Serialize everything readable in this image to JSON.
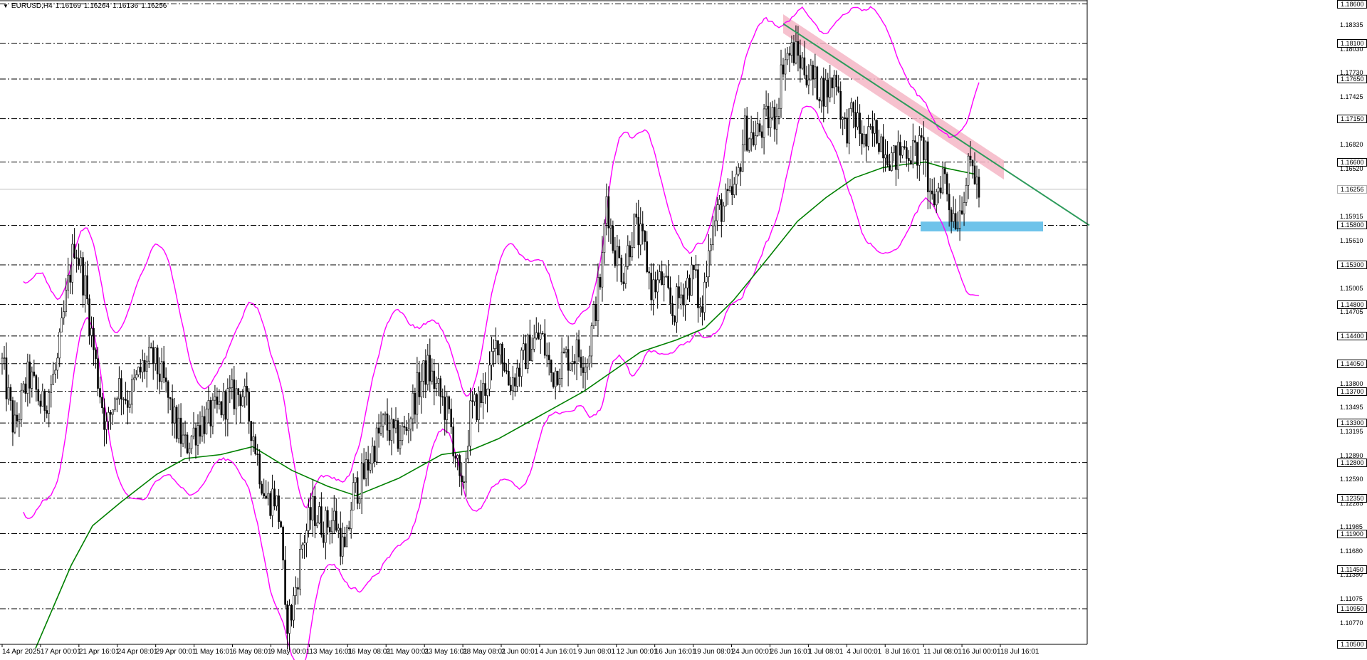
{
  "header": {
    "symbol": "EURUSD,H4",
    "open": "1.16169",
    "high": "1.16264",
    "low": "1.16136",
    "close": "1.16256",
    "menu_icon": "triangle-down-icon"
  },
  "price_axis": {
    "levels_boxed": [
      {
        "price": 1.186,
        "label": "1.18600"
      },
      {
        "price": 1.181,
        "label": "1.18100"
      },
      {
        "price": 1.1765,
        "label": "1.17650"
      },
      {
        "price": 1.1715,
        "label": "1.17150"
      },
      {
        "price": 1.166,
        "label": "1.16600"
      },
      {
        "price": 1.158,
        "label": "1.15800"
      },
      {
        "price": 1.153,
        "label": "1.15300"
      },
      {
        "price": 1.148,
        "label": "1.14800"
      },
      {
        "price": 1.144,
        "label": "1.14400"
      },
      {
        "price": 1.1405,
        "label": "1.14050"
      },
      {
        "price": 1.137,
        "label": "1.13700"
      },
      {
        "price": 1.133,
        "label": "1.13300"
      },
      {
        "price": 1.128,
        "label": "1.12800"
      },
      {
        "price": 1.1235,
        "label": "1.12350"
      },
      {
        "price": 1.119,
        "label": "1.11900"
      },
      {
        "price": 1.1145,
        "label": "1.11450"
      },
      {
        "price": 1.1095,
        "label": "1.10950"
      },
      {
        "price": 1.105,
        "label": "1.10500"
      }
    ],
    "ticks": [
      {
        "price": 1.18335,
        "label": "1.18335"
      },
      {
        "price": 1.1803,
        "label": "1.18030"
      },
      {
        "price": 1.1773,
        "label": "1.17730"
      },
      {
        "price": 1.17425,
        "label": "1.17425"
      },
      {
        "price": 1.1682,
        "label": "1.16820"
      },
      {
        "price": 1.1652,
        "label": "1.16520"
      },
      {
        "price": 1.15915,
        "label": "1.15915"
      },
      {
        "price": 1.1561,
        "label": "1.15610"
      },
      {
        "price": 1.15005,
        "label": "1.15005"
      },
      {
        "price": 1.14705,
        "label": "1.14705"
      },
      {
        "price": 1.138,
        "label": "1.13800"
      },
      {
        "price": 1.13495,
        "label": "1.13495"
      },
      {
        "price": 1.13195,
        "label": "1.13195"
      },
      {
        "price": 1.1289,
        "label": "1.12890"
      },
      {
        "price": 1.1259,
        "label": "1.12590"
      },
      {
        "price": 1.12285,
        "label": "1.12285"
      },
      {
        "price": 1.11985,
        "label": "1.11985"
      },
      {
        "price": 1.1168,
        "label": "1.11680"
      },
      {
        "price": 1.1138,
        "label": "1.11380"
      },
      {
        "price": 1.11075,
        "label": "1.11075"
      },
      {
        "price": 1.1077,
        "label": "1.10770"
      }
    ],
    "current_price": {
      "price": 1.16256,
      "label": "1.16256"
    }
  },
  "time_axis": {
    "labels": [
      "14 Apr 2025",
      "17 Apr 00:01",
      "21 Apr 16:01",
      "24 Apr 08:01",
      "29 Apr 00:01",
      "1 May 16:01",
      "6 May 08:01",
      "9 May 00:01",
      "13 May 16:01",
      "16 May 08:01",
      "21 May 00:01",
      "23 May 16:01",
      "28 May 08:01",
      "2 Jun 00:01",
      "4 Jun 16:01",
      "9 Jun 08:01",
      "12 Jun 00:01",
      "16 Jun 16:01",
      "19 Jun 08:01",
      "24 Jun 00:01",
      "26 Jun 16:01",
      "1 Jul 08:01",
      "4 Jul 00:01",
      "8 Jul 16:01",
      "11 Jul 08:01",
      "16 Jul 00:01",
      "18 Jul 16:01"
    ]
  },
  "chart_data": {
    "type": "candlestick",
    "symbol": "EURUSD",
    "timeframe": "H4",
    "ylim": [
      1.105,
      1.1865
    ],
    "anchors": [
      [
        0,
        1.142
      ],
      [
        20,
        1.132
      ],
      [
        40,
        1.139
      ],
      [
        60,
        1.135
      ],
      [
        80,
        1.14
      ],
      [
        95,
        1.15
      ],
      [
        105,
        1.156
      ],
      [
        120,
        1.15
      ],
      [
        135,
        1.14
      ],
      [
        150,
        1.132
      ],
      [
        165,
        1.138
      ],
      [
        180,
        1.136
      ],
      [
        200,
        1.14
      ],
      [
        215,
        1.141
      ],
      [
        230,
        1.138
      ],
      [
        245,
        1.133
      ],
      [
        260,
        1.13
      ],
      [
        280,
        1.133
      ],
      [
        300,
        1.134
      ],
      [
        320,
        1.136
      ],
      [
        340,
        1.137
      ],
      [
        355,
        1.132
      ],
      [
        365,
        1.127
      ],
      [
        375,
        1.123
      ],
      [
        385,
        1.124
      ],
      [
        395,
        1.12
      ],
      [
        400,
        1.108
      ],
      [
        410,
        1.109
      ],
      [
        425,
        1.118
      ],
      [
        440,
        1.122
      ],
      [
        455,
        1.12
      ],
      [
        470,
        1.121
      ],
      [
        485,
        1.116
      ],
      [
        495,
        1.124
      ],
      [
        510,
        1.126
      ],
      [
        525,
        1.13
      ],
      [
        540,
        1.133
      ],
      [
        555,
        1.131
      ],
      [
        570,
        1.132
      ],
      [
        585,
        1.137
      ],
      [
        600,
        1.14
      ],
      [
        615,
        1.137
      ],
      [
        630,
        1.134
      ],
      [
        640,
        1.129
      ],
      [
        648,
        1.123
      ],
      [
        660,
        1.134
      ],
      [
        675,
        1.136
      ],
      [
        690,
        1.14
      ],
      [
        700,
        1.144
      ],
      [
        715,
        1.138
      ],
      [
        730,
        1.14
      ],
      [
        745,
        1.143
      ],
      [
        760,
        1.144
      ],
      [
        775,
        1.139
      ],
      [
        790,
        1.141
      ],
      [
        810,
        1.142
      ],
      [
        825,
        1.141
      ],
      [
        835,
        1.147
      ],
      [
        845,
        1.152
      ],
      [
        852,
        1.162
      ],
      [
        860,
        1.156
      ],
      [
        875,
        1.152
      ],
      [
        890,
        1.158
      ],
      [
        905,
        1.155
      ],
      [
        915,
        1.15
      ],
      [
        930,
        1.151
      ],
      [
        945,
        1.147
      ],
      [
        960,
        1.15
      ],
      [
        975,
        1.152
      ],
      [
        985,
        1.146
      ],
      [
        995,
        1.156
      ],
      [
        1010,
        1.16
      ],
      [
        1025,
        1.161
      ],
      [
        1035,
        1.163
      ],
      [
        1045,
        1.17
      ],
      [
        1060,
        1.169
      ],
      [
        1075,
        1.171
      ],
      [
        1090,
        1.172
      ],
      [
        1100,
        1.179
      ],
      [
        1115,
        1.18
      ],
      [
        1130,
        1.178
      ],
      [
        1145,
        1.176
      ],
      [
        1160,
        1.175
      ],
      [
        1175,
        1.177
      ],
      [
        1185,
        1.17
      ],
      [
        1200,
        1.172
      ],
      [
        1215,
        1.168
      ],
      [
        1230,
        1.17
      ],
      [
        1245,
        1.168
      ],
      [
        1255,
        1.166
      ],
      [
        1270,
        1.168
      ],
      [
        1285,
        1.167
      ],
      [
        1300,
        1.168
      ],
      [
        1305,
        1.16
      ],
      [
        1315,
        1.162
      ],
      [
        1325,
        1.165
      ],
      [
        1335,
        1.16
      ],
      [
        1345,
        1.159
      ],
      [
        1355,
        1.163
      ],
      [
        1365,
        1.166
      ],
      [
        1375,
        1.162
      ]
    ],
    "candle_count": 460,
    "bollinger_width": 0.0137,
    "moving_average": [
      [
        50,
        1.1045
      ],
      [
        100,
        1.115
      ],
      [
        130,
        1.12
      ],
      [
        170,
        1.123
      ],
      [
        220,
        1.1265
      ],
      [
        260,
        1.1285
      ],
      [
        310,
        1.129
      ],
      [
        355,
        1.13
      ],
      [
        410,
        1.127
      ],
      [
        460,
        1.125
      ],
      [
        500,
        1.1238
      ],
      [
        560,
        1.126
      ],
      [
        620,
        1.129
      ],
      [
        660,
        1.1295
      ],
      [
        700,
        1.131
      ],
      [
        760,
        1.134
      ],
      [
        820,
        1.137
      ],
      [
        860,
        1.1395
      ],
      [
        900,
        1.142
      ],
      [
        950,
        1.1435
      ],
      [
        990,
        1.145
      ],
      [
        1030,
        1.1485
      ],
      [
        1080,
        1.154
      ],
      [
        1120,
        1.1585
      ],
      [
        1160,
        1.1615
      ],
      [
        1200,
        1.164
      ],
      [
        1240,
        1.1653
      ],
      [
        1270,
        1.1657
      ],
      [
        1300,
        1.166
      ],
      [
        1330,
        1.1652
      ],
      [
        1368,
        1.1645
      ]
    ],
    "trendline": {
      "from": [
        1100,
        1.1835
      ],
      "to": [
        1530,
        1.158
      ],
      "color": "#2e9b5c"
    },
    "trend_channel": {
      "color": "#f4b6c6",
      "from": [
        1100,
        1.1835
      ],
      "to": [
        1410,
        1.165
      ]
    },
    "support_zone": {
      "price_high": 1.1582,
      "price_low": 1.1575,
      "x_start": 1293,
      "x_end": 1465,
      "color": "#6ec3ea"
    },
    "horizontal_levels": [
      1.186,
      1.181,
      1.1765,
      1.1715,
      1.166,
      1.158,
      1.153,
      1.148,
      1.144,
      1.1405,
      1.137,
      1.133,
      1.128,
      1.1235,
      1.119,
      1.1145,
      1.1095,
      1.105
    ],
    "colors": {
      "candle": "#000000",
      "bollinger": "#ff00ff",
      "moving_average": "#008000",
      "levels": "#000000",
      "current_price_line": "#c0c0c0"
    }
  }
}
